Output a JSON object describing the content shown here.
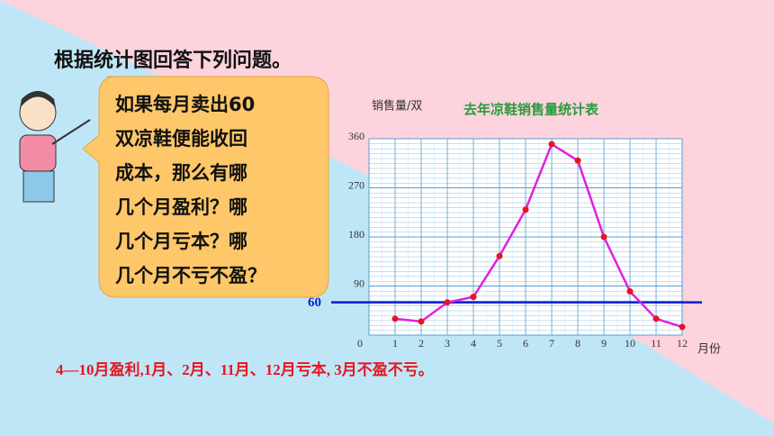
{
  "heading": "根据统计图回答下列问题。",
  "bubble_lines": [
    "如果每月卖出60",
    "双凉鞋便能收回",
    "成本，那么有哪",
    "几个月盈利？哪",
    "几个月亏本？哪",
    "几个月不亏不盈？"
  ],
  "answer": "4—10月盈利,1月、2月、11月、12月亏本, 3月不盈不亏。",
  "chart_data": {
    "type": "line",
    "title": "去年凉鞋销售量统计表",
    "y_label": "销售量/双",
    "x_label": "月份",
    "x": [
      1,
      2,
      3,
      4,
      5,
      6,
      7,
      8,
      9,
      10,
      11,
      12
    ],
    "values": [
      30,
      25,
      60,
      70,
      145,
      230,
      350,
      320,
      180,
      80,
      30,
      15
    ],
    "color": "#e020e0",
    "marker_color": "#e8141e",
    "xlim": [
      0,
      12
    ],
    "xticks": [
      0,
      1,
      2,
      3,
      4,
      5,
      6,
      7,
      8,
      9,
      10,
      11,
      12
    ],
    "ylim": [
      0,
      360
    ],
    "yticks": [
      90,
      180,
      270,
      360
    ],
    "grid": true,
    "reference_line": {
      "value": 60,
      "label": "60",
      "color": "#0a1ed2"
    }
  }
}
